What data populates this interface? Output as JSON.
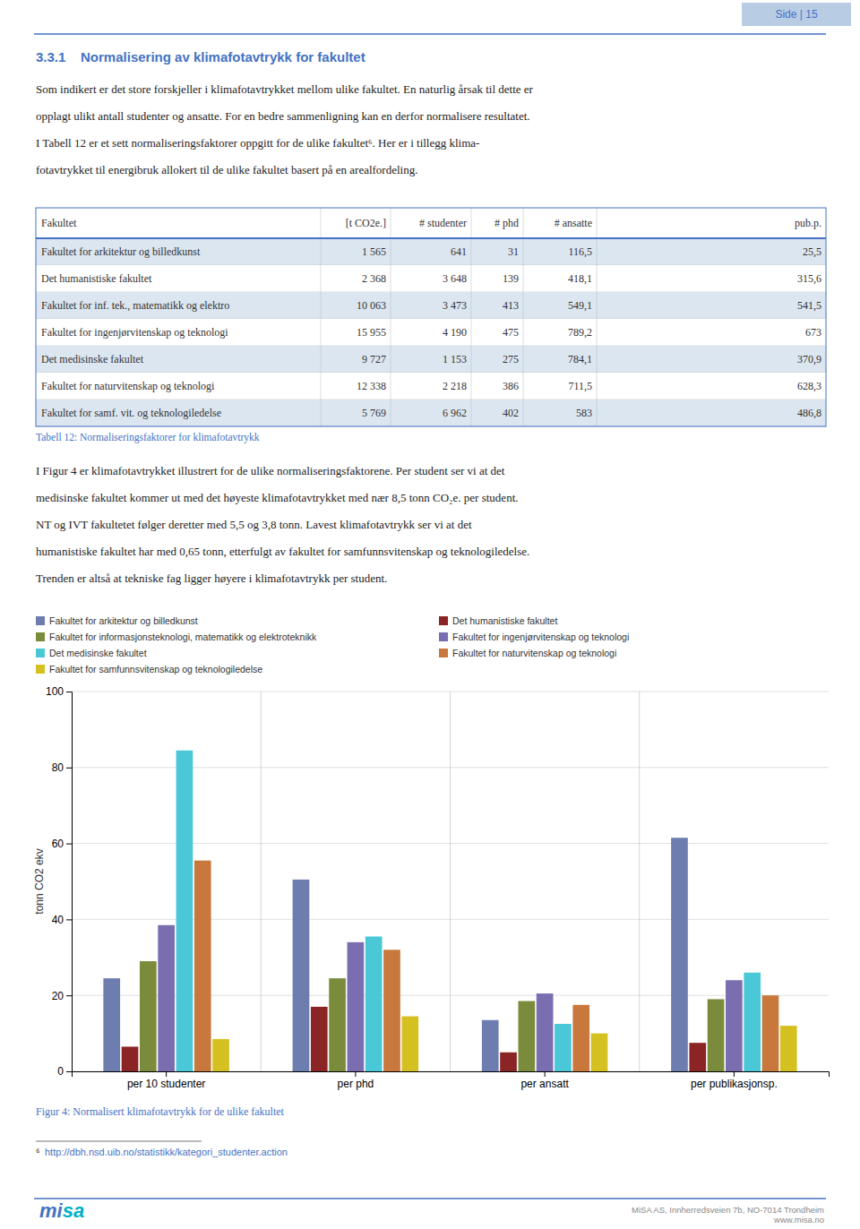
{
  "page": {
    "page_number": "Side | 15",
    "section_title": "3.3.1    Normalisering av klimafotavtrykk for fakultet",
    "paragraph1": [
      "Som indikert er det store forskjeller i klimafotavtrykket mellom ulike fakultet. En naturlig årsak til dette er",
      "opplagt ulikt antall studenter og ansatte. For en bedre sammenligning kan en derfor normalisere resultatet.",
      "I Tabell 12 er et sett normaliseringsfaktorer oppgitt for de ulike fakultet⁶. Her er i tillegg klima-",
      "fotavtrykket til energibruk allokert til de ulike fakultet basert på en arealfordeling."
    ],
    "table": {
      "headers": [
        "Fakultet",
        "[t CO2e.]",
        "# studenter",
        "# phd",
        "# ansatte",
        "pub.p."
      ],
      "rows": [
        [
          "Fakultet for arkitektur og billedkunst",
          "1 565",
          "641",
          "31",
          "116,5",
          "25,5"
        ],
        [
          "Det humanistiske fakultet",
          "2 368",
          "3 648",
          "139",
          "418,1",
          "315,6"
        ],
        [
          "Fakultet for inf. tek., matematikk og elektro",
          "10 063",
          "3 473",
          "413",
          "549,1",
          "541,5"
        ],
        [
          "Fakultet for ingenjørvitenskap og teknologi",
          "15 955",
          "4 190",
          "475",
          "789,2",
          "673"
        ],
        [
          "Det medisinske fakultet",
          "9 727",
          "1 153",
          "275",
          "784,1",
          "370,9"
        ],
        [
          "Fakultet for naturvitenskap og teknologi",
          "12 338",
          "2 218",
          "386",
          "711,5",
          "628,3"
        ],
        [
          "Fakultet for samf. vit. og teknologiledelse",
          "5 769",
          "6 962",
          "402",
          "583",
          "486,8"
        ]
      ],
      "caption": "Tabell 12: Normaliseringsfaktorer for klimafotavtrykk"
    },
    "paragraph2": [
      "I Figur 4 er klimafotavtrykket illustrert for de ulike normaliseringsfaktorene. Per student ser vi at det",
      "medisinske fakultet kommer ut med det høyeste klimafotavtrykket med nær 8,5 tonn CO₂e. per student.",
      "NT og IVT fakultetet følger deretter med 5,5 og 3,8 tonn. Lavest klimafotavtrykk ser vi at det",
      "humanistiske fakultet har med 0,65 tonn, etterfulgt av fakultet for samfunnsvitenskap og teknologiledelse.",
      "Trenden er altså at tekniske fag ligger høyere i klimafotavtrykk per student."
    ],
    "footnote": {
      "number": "⁶",
      "url": "http://dbh.nsd.uib.no/statistikk/kategori_studenter.action"
    },
    "footer": {
      "logo": [
        "mi",
        "sa"
      ],
      "lines": [
        "MiSA AS, Innherredsveien 7b, NO-7014 Trondheim",
        "www.misa.no"
      ]
    }
  },
  "chart_data": {
    "type": "bar",
    "title": "Figur 4: Normalisert klimafotavtrykk for de ulike fakultet",
    "y_label": "tonn CO2 ekv",
    "categories": [
      "per 10 studenter",
      "per phd",
      "per ansatt",
      "per publikasjonsp."
    ],
    "series": [
      {
        "name": "Fakultet for arkitektur og billedkunst",
        "color": "#6E7DB0",
        "values": [
          24.5,
          50.5,
          13.5,
          61.5
        ]
      },
      {
        "name": "Det humanistiske fakultet",
        "color": "#8B2525",
        "values": [
          6.5,
          17.0,
          5.0,
          7.5
        ]
      },
      {
        "name": "Fakultet for informasjonsteknologi, matematikk og elektroteknikk",
        "color": "#7A8C3C",
        "values": [
          29.0,
          24.5,
          18.5,
          19.0
        ]
      },
      {
        "name": "Fakultet for ingenjørvitenskap og teknologi",
        "color": "#7B6EB0",
        "values": [
          38.5,
          34.0,
          20.5,
          24.0
        ]
      },
      {
        "name": "Det medisinske fakultet",
        "color": "#4AC8D8",
        "values": [
          84.5,
          35.5,
          12.5,
          26.0
        ]
      },
      {
        "name": "Fakultet for naturvitenskap og teknologi",
        "color": "#C8783C",
        "values": [
          55.5,
          32.0,
          17.5,
          20.0
        ]
      },
      {
        "name": "Fakultet for samfunnsvitenskap og teknologiledelse",
        "color": "#D4C020",
        "values": [
          8.5,
          14.5,
          10.0,
          12.0
        ]
      }
    ],
    "ylim": [
      0,
      100
    ],
    "yticks": [
      0,
      20,
      40,
      60,
      80,
      100
    ],
    "grid": true,
    "legend": "top"
  }
}
